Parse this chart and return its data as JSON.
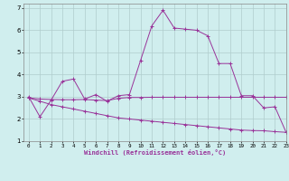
{
  "xlabel": "Windchill (Refroidissement éolien,°C)",
  "xlim": [
    -0.5,
    23
  ],
  "ylim": [
    1,
    7.2
  ],
  "xticks": [
    0,
    1,
    2,
    3,
    4,
    5,
    6,
    7,
    8,
    9,
    10,
    11,
    12,
    13,
    14,
    15,
    16,
    17,
    18,
    19,
    20,
    21,
    22,
    23
  ],
  "yticks": [
    1,
    2,
    3,
    4,
    5,
    6,
    7
  ],
  "background_color": "#d0eeee",
  "grid_color": "#b0cccc",
  "line_color": "#993399",
  "line1_x": [
    0,
    1,
    2,
    3,
    4,
    5,
    6,
    7,
    8,
    9,
    10,
    11,
    12,
    13,
    14,
    15,
    16,
    17,
    18,
    19,
    20,
    21,
    22,
    23
  ],
  "line1_y": [
    3.0,
    2.1,
    2.85,
    3.7,
    3.8,
    2.9,
    3.1,
    2.8,
    3.05,
    3.1,
    4.65,
    6.2,
    6.9,
    6.1,
    6.05,
    6.0,
    5.75,
    4.5,
    4.5,
    3.05,
    3.05,
    2.5,
    2.55,
    1.4
  ],
  "line2_x": [
    0,
    1,
    2,
    3,
    4,
    5,
    6,
    7,
    8,
    9,
    10,
    11,
    12,
    13,
    14,
    15,
    16,
    17,
    18,
    19,
    20,
    21,
    22,
    23
  ],
  "line2_y": [
    2.95,
    2.9,
    2.88,
    2.87,
    2.87,
    2.88,
    2.85,
    2.83,
    2.93,
    2.97,
    2.97,
    2.98,
    2.98,
    2.98,
    2.98,
    2.98,
    2.98,
    2.98,
    2.98,
    2.98,
    2.98,
    2.98,
    2.98,
    2.98
  ],
  "line3_x": [
    0,
    1,
    2,
    3,
    4,
    5,
    6,
    7,
    8,
    9,
    10,
    11,
    12,
    13,
    14,
    15,
    16,
    17,
    18,
    19,
    20,
    21,
    22,
    23
  ],
  "line3_y": [
    2.95,
    2.8,
    2.65,
    2.55,
    2.45,
    2.35,
    2.25,
    2.15,
    2.05,
    2.0,
    1.95,
    1.9,
    1.85,
    1.8,
    1.75,
    1.7,
    1.65,
    1.6,
    1.55,
    1.5,
    1.48,
    1.47,
    1.43,
    1.4
  ]
}
